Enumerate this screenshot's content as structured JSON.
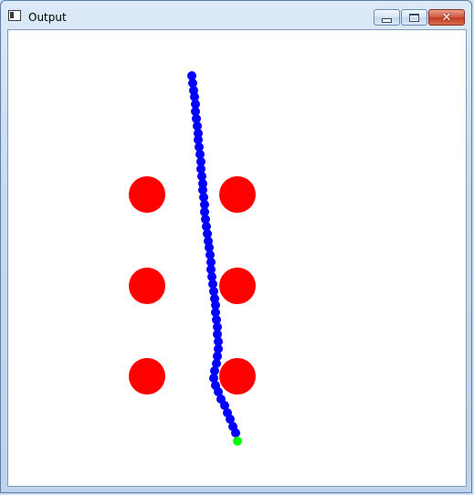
{
  "window": {
    "title": "Output",
    "app_icon": "console-window-icon",
    "buttons": {
      "minimize": "minimize-icon",
      "maximize": "maximize-icon",
      "close": "close-icon",
      "close_glyph": "✕"
    }
  },
  "colors": {
    "background": "#ffffff",
    "obstacle": "#ff0000",
    "path_point": "#0000ff",
    "goal_point": "#00ff00"
  }
}
